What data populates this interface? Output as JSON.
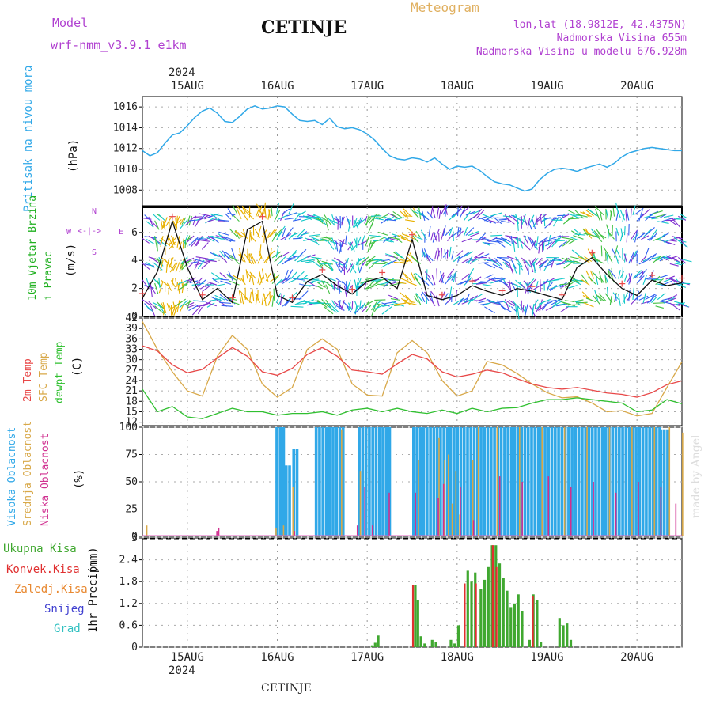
{
  "header": {
    "model_label": "Model",
    "model_name": "wrf-nmm_v3.9.1  e1km",
    "station": "CETINJE",
    "meteogram": "Meteogram",
    "coords": "lon,lat (18.9812E, 42.4375N)",
    "elevation": "Nadmorska Visina 655m",
    "model_elevation": "Nadmorska Visina u modelu 676.928m"
  },
  "footer": {
    "station": "CETINJE",
    "watermark": "made by Angel"
  },
  "colors": {
    "pressure": "#30a8e8",
    "wind_speed": "#111111",
    "temp2m": "#e84848",
    "sfc_temp": "#d8a848",
    "dewpt": "#30c030",
    "high_cloud": "#30a8e8",
    "mid_cloud": "#d8a848",
    "low_cloud": "#d03090",
    "total_precip": "#40a830",
    "conv_precip": "#e03030",
    "purple": "#b040d0"
  },
  "chart_data": [
    {
      "type": "line",
      "title": "",
      "ylabel": "Pritisak na nivou mora",
      "yunit": "(hPa)",
      "ylim": [
        1006.5,
        1017
      ],
      "yticks": [
        1008,
        1010,
        1012,
        1014,
        1016
      ],
      "year": "2024",
      "date_ticks": [
        "15AUG",
        "16AUG",
        "17AUG",
        "18AUG",
        "19AUG",
        "20AUG"
      ],
      "xlim": [
        0,
        144
      ],
      "x": [
        0,
        2,
        4,
        6,
        8,
        10,
        12,
        14,
        16,
        18,
        20,
        22,
        24,
        26,
        28,
        30,
        32,
        34,
        36,
        38,
        40,
        42,
        44,
        46,
        48,
        50,
        52,
        54,
        56,
        58,
        60,
        62,
        64,
        66,
        68,
        70,
        72,
        74,
        76,
        78,
        80,
        82,
        84,
        86,
        88,
        90,
        92,
        94,
        96,
        98,
        100,
        102,
        104,
        106,
        108,
        110,
        112,
        114,
        116,
        118,
        120,
        122,
        124,
        126,
        128,
        130,
        132,
        134,
        136,
        138,
        140,
        142,
        144
      ],
      "series": [
        {
          "name": "Pritisak na nivou mora",
          "values": [
            1011.8,
            1011.3,
            1011.6,
            1012.5,
            1013.3,
            1013.5,
            1014.2,
            1015.0,
            1015.6,
            1015.9,
            1015.4,
            1014.6,
            1014.5,
            1015.1,
            1015.8,
            1016.1,
            1015.8,
            1015.9,
            1016.1,
            1016.0,
            1015.3,
            1014.7,
            1014.6,
            1014.7,
            1014.3,
            1014.9,
            1014.1,
            1013.9,
            1014.0,
            1013.8,
            1013.4,
            1012.8,
            1012.0,
            1011.3,
            1011.0,
            1010.9,
            1011.1,
            1011.0,
            1010.7,
            1011.1,
            1010.5,
            1010.0,
            1010.3,
            1010.2,
            1010.3,
            1009.9,
            1009.3,
            1008.8,
            1008.6,
            1008.5,
            1008.2,
            1007.9,
            1008.1,
            1009.0,
            1009.6,
            1010.0,
            1010.1,
            1010.0,
            1009.8,
            1010.1,
            1010.3,
            1010.5,
            1010.2,
            1010.6,
            1011.2,
            1011.6,
            1011.8,
            1012.0,
            1012.1,
            1012.0,
            1011.9,
            1011.8,
            1011.8
          ]
        }
      ]
    },
    {
      "type": "line",
      "title": "",
      "ylabel": "10m Vjetar Brzina i Pravac",
      "yunit": "(m/s)",
      "ylim": [
        0,
        7.8
      ],
      "yticks": [
        0,
        2,
        4,
        6
      ],
      "compass": {
        "n": "N",
        "e": "E",
        "w": "W",
        "s": "S"
      },
      "x": [
        0,
        4,
        8,
        12,
        16,
        20,
        24,
        28,
        32,
        36,
        40,
        44,
        48,
        52,
        56,
        60,
        64,
        68,
        72,
        76,
        80,
        84,
        88,
        92,
        96,
        100,
        104,
        108,
        112,
        116,
        120,
        124,
        128,
        132,
        136,
        140,
        144
      ],
      "series": [
        {
          "name": "10m Vjetar",
          "values": [
            1.3,
            3.2,
            6.8,
            3.5,
            1.2,
            2.0,
            1.0,
            6.2,
            6.8,
            1.5,
            1.0,
            2.5,
            3.0,
            2.2,
            1.6,
            2.5,
            2.8,
            2.0,
            5.5,
            1.5,
            1.2,
            1.5,
            2.2,
            1.8,
            1.5,
            2.0,
            1.8,
            1.5,
            1.2,
            3.5,
            4.2,
            3.0,
            2.0,
            1.5,
            2.6,
            2.2,
            2.4
          ]
        }
      ]
    },
    {
      "type": "line",
      "title": "",
      "ylabel": "2m Temp / SFC Temp / dewpt Temp",
      "yunit": "(C)",
      "ylim": [
        11,
        42
      ],
      "yticks": [
        12,
        15,
        18,
        21,
        24,
        27,
        30,
        33,
        36,
        39,
        42
      ],
      "x": [
        0,
        4,
        8,
        12,
        16,
        20,
        24,
        28,
        32,
        36,
        40,
        44,
        48,
        52,
        56,
        60,
        64,
        68,
        72,
        76,
        80,
        84,
        88,
        92,
        96,
        100,
        104,
        108,
        112,
        116,
        120,
        124,
        128,
        132,
        136,
        140,
        144
      ],
      "series": [
        {
          "name": "2m Temp",
          "values": [
            34,
            32.5,
            28.5,
            26.2,
            27.2,
            30.5,
            33.5,
            31,
            26.5,
            25.5,
            27.5,
            31.5,
            33.5,
            31,
            27,
            26.5,
            25.8,
            28.8,
            31.5,
            30.2,
            26.5,
            25,
            25.8,
            27,
            26.2,
            24.5,
            23,
            22,
            21.5,
            22,
            21.2,
            20.4,
            20,
            19.2,
            20.5,
            22.8,
            23.9
          ]
        },
        {
          "name": "SFC Temp",
          "values": [
            41,
            33,
            26.5,
            21,
            19.5,
            31,
            37,
            33,
            23,
            19.2,
            22,
            33,
            36,
            33,
            23,
            19.8,
            19.5,
            32,
            35.5,
            32,
            24,
            19.5,
            21,
            29.5,
            28.5,
            26,
            23,
            20.5,
            19,
            19.3,
            17.5,
            15,
            15.3,
            13.8,
            14.5,
            22,
            29.4
          ]
        },
        {
          "name": "dewpt Temp",
          "values": [
            21.5,
            15,
            16.5,
            13.5,
            13,
            14.5,
            16,
            15,
            15,
            14,
            14.5,
            14.5,
            15,
            14,
            15.5,
            16,
            15,
            16,
            15,
            14.5,
            15.5,
            14.5,
            16,
            15,
            16,
            16.2,
            17.5,
            18.5,
            18.5,
            19,
            18.5,
            18,
            17.5,
            15,
            15.5,
            18.5,
            17.3
          ]
        }
      ]
    },
    {
      "type": "bar",
      "title": "",
      "ylabel": "Visoka Oblacnost / Srednja Oblacnost / Niska Oblacnost",
      "yunit": "(%)",
      "ylim": [
        0,
        100
      ],
      "yticks": [
        0,
        25,
        50,
        75,
        100
      ],
      "series": [
        {
          "name": "Visoka Oblacnost",
          "segments": [
            [
              35.5,
              37.5,
              100
            ],
            [
              38,
              39,
              65
            ],
            [
              40,
              41,
              80
            ],
            [
              46,
              54,
              100
            ],
            [
              57.5,
              66,
              100
            ],
            [
              72,
              90,
              100
            ],
            [
              90,
              138,
              100
            ],
            [
              138,
              140,
              98
            ]
          ]
        },
        {
          "name": "Srednja Oblacnost",
          "points": [
            [
              0.5,
              10
            ],
            [
              35,
              8
            ],
            [
              37,
              10
            ],
            [
              39.5,
              45
            ],
            [
              52.5,
              98
            ],
            [
              57.5,
              60
            ],
            [
              73,
              70
            ],
            [
              78.5,
              90
            ],
            [
              80,
              70
            ],
            [
              81,
              75
            ],
            [
              82,
              30
            ],
            [
              83,
              60
            ],
            [
              84,
              20
            ],
            [
              87.5,
              70
            ],
            [
              89,
              100
            ],
            [
              94,
              100
            ],
            [
              100,
              100
            ],
            [
              106,
              100
            ],
            [
              112,
              100
            ],
            [
              118,
              100
            ],
            [
              124,
              100
            ],
            [
              130,
              100
            ],
            [
              136,
              100
            ],
            [
              140,
              100
            ],
            [
              143.5,
              95
            ]
          ]
        },
        {
          "name": "Niska Oblacnost",
          "points": [
            [
              19.5,
              5
            ],
            [
              20,
              8
            ],
            [
              40.2,
              5
            ],
            [
              57,
              10
            ],
            [
              59,
              45
            ],
            [
              61,
              10
            ],
            [
              65.5,
              40
            ],
            [
              72.5,
              40
            ],
            [
              78.6,
              35
            ],
            [
              80,
              48
            ],
            [
              84.5,
              45
            ],
            [
              88,
              15
            ],
            [
              95,
              55
            ],
            [
              101,
              50
            ],
            [
              108,
              55
            ],
            [
              114,
              45
            ],
            [
              120,
              50
            ],
            [
              126,
              40
            ],
            [
              132,
              50
            ],
            [
              138,
              45
            ],
            [
              142,
              30
            ]
          ]
        }
      ]
    },
    {
      "type": "bar",
      "title": "",
      "ylabel": "1hr Precip",
      "yunit": "(mm)",
      "ylim": [
        0,
        3
      ],
      "yticks": [
        0,
        0.6,
        1.2,
        1.8,
        2.4,
        3
      ],
      "legend": [
        "Ukupna Kisa",
        "Konvek.Kisa",
        "Zaledj.Kisa",
        "Snijeg",
        "Grad"
      ],
      "year": "2024",
      "date_ticks": [
        "15AUG",
        "16AUG",
        "17AUG",
        "18AUG",
        "19AUG",
        "20AUG"
      ],
      "series": [
        {
          "name": "Ukupna Kisa",
          "points": [
            [
              61,
              0.05
            ],
            [
              61.8,
              0.12
            ],
            [
              62.6,
              0.32
            ],
            [
              72.5,
              1.7
            ],
            [
              73.2,
              1.3
            ],
            [
              74,
              0.3
            ],
            [
              75,
              0.1
            ],
            [
              77,
              0.2
            ],
            [
              78,
              0.15
            ],
            [
              82,
              0.2
            ],
            [
              83,
              0.1
            ],
            [
              84,
              0.6
            ],
            [
              86.5,
              2.1
            ],
            [
              87.5,
              1.8
            ],
            [
              88.5,
              2.05
            ],
            [
              90,
              1.6
            ],
            [
              91,
              1.85
            ],
            [
              92,
              2.2
            ],
            [
              93,
              2.8
            ],
            [
              94,
              2.8
            ],
            [
              95,
              2.3
            ],
            [
              96,
              1.9
            ],
            [
              97,
              1.55
            ],
            [
              98,
              1.1
            ],
            [
              99,
              1.2
            ],
            [
              100,
              1.45
            ],
            [
              101,
              1.0
            ],
            [
              103,
              0.2
            ],
            [
              104,
              1.45
            ],
            [
              105,
              1.3
            ],
            [
              106,
              0.15
            ],
            [
              111,
              0.8
            ],
            [
              112,
              0.6
            ],
            [
              113,
              0.65
            ],
            [
              114,
              0.2
            ]
          ]
        },
        {
          "name": "Konvek.Kisa",
          "points": [
            [
              72.2,
              1.7
            ],
            [
              86,
              1.75
            ],
            [
              89,
              1.75
            ],
            [
              93.5,
              2.8
            ],
            [
              94.5,
              2.2
            ],
            [
              104.2,
              1.4
            ]
          ]
        }
      ]
    }
  ]
}
